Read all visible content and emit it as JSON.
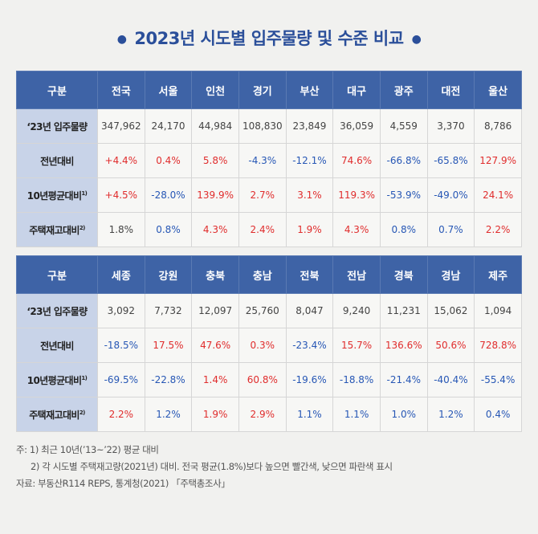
{
  "title": "2023년 시도별 입주물량 및 수준 비교",
  "table_top": {
    "headers": [
      "구분",
      "전국",
      "서울",
      "인천",
      "경기",
      "부산",
      "대구",
      "광주",
      "대전",
      "울산"
    ],
    "rows": [
      {
        "label": "‘23년 입주물량",
        "cells": [
          {
            "v": "347,962",
            "c": ""
          },
          {
            "v": "24,170",
            "c": ""
          },
          {
            "v": "44,984",
            "c": ""
          },
          {
            "v": "108,830",
            "c": ""
          },
          {
            "v": "23,849",
            "c": ""
          },
          {
            "v": "36,059",
            "c": ""
          },
          {
            "v": "4,559",
            "c": ""
          },
          {
            "v": "3,370",
            "c": ""
          },
          {
            "v": "8,786",
            "c": ""
          }
        ]
      },
      {
        "label": "전년대비",
        "cells": [
          {
            "v": "+4.4%",
            "c": "red"
          },
          {
            "v": "0.4%",
            "c": "red"
          },
          {
            "v": "5.8%",
            "c": "red"
          },
          {
            "v": "-4.3%",
            "c": "blue"
          },
          {
            "v": "-12.1%",
            "c": "blue"
          },
          {
            "v": "74.6%",
            "c": "red"
          },
          {
            "v": "-66.8%",
            "c": "blue"
          },
          {
            "v": "-65.8%",
            "c": "blue"
          },
          {
            "v": "127.9%",
            "c": "red"
          }
        ]
      },
      {
        "label": "10년평균대비",
        "sup": "1)",
        "cells": [
          {
            "v": "+4.5%",
            "c": "red"
          },
          {
            "v": "-28.0%",
            "c": "blue"
          },
          {
            "v": "139.9%",
            "c": "red"
          },
          {
            "v": "2.7%",
            "c": "red"
          },
          {
            "v": "3.1%",
            "c": "red"
          },
          {
            "v": "119.3%",
            "c": "red"
          },
          {
            "v": "-53.9%",
            "c": "blue"
          },
          {
            "v": "-49.0%",
            "c": "blue"
          },
          {
            "v": "24.1%",
            "c": "red"
          }
        ]
      },
      {
        "label": "주택재고대비",
        "sup": "2)",
        "cells": [
          {
            "v": "1.8%",
            "c": ""
          },
          {
            "v": "0.8%",
            "c": "blue"
          },
          {
            "v": "4.3%",
            "c": "red"
          },
          {
            "v": "2.4%",
            "c": "red"
          },
          {
            "v": "1.9%",
            "c": "red"
          },
          {
            "v": "4.3%",
            "c": "red"
          },
          {
            "v": "0.8%",
            "c": "blue"
          },
          {
            "v": "0.7%",
            "c": "blue"
          },
          {
            "v": "2.2%",
            "c": "red"
          }
        ]
      }
    ]
  },
  "table_bottom": {
    "headers": [
      "구분",
      "세종",
      "강원",
      "충북",
      "충남",
      "전북",
      "전남",
      "경북",
      "경남",
      "제주"
    ],
    "rows": [
      {
        "label": "‘23년 입주물량",
        "cells": [
          {
            "v": "3,092",
            "c": ""
          },
          {
            "v": "7,732",
            "c": ""
          },
          {
            "v": "12,097",
            "c": ""
          },
          {
            "v": "25,760",
            "c": ""
          },
          {
            "v": "8,047",
            "c": ""
          },
          {
            "v": "9,240",
            "c": ""
          },
          {
            "v": "11,231",
            "c": ""
          },
          {
            "v": "15,062",
            "c": ""
          },
          {
            "v": "1,094",
            "c": ""
          }
        ]
      },
      {
        "label": "전년대비",
        "cells": [
          {
            "v": "-18.5%",
            "c": "blue"
          },
          {
            "v": "17.5%",
            "c": "red"
          },
          {
            "v": "47.6%",
            "c": "red"
          },
          {
            "v": "0.3%",
            "c": "red"
          },
          {
            "v": "-23.4%",
            "c": "blue"
          },
          {
            "v": "15.7%",
            "c": "red"
          },
          {
            "v": "136.6%",
            "c": "red"
          },
          {
            "v": "50.6%",
            "c": "red"
          },
          {
            "v": "728.8%",
            "c": "red"
          }
        ]
      },
      {
        "label": "10년평균대비",
        "sup": "1)",
        "cells": [
          {
            "v": "-69.5%",
            "c": "blue"
          },
          {
            "v": "-22.8%",
            "c": "blue"
          },
          {
            "v": "1.4%",
            "c": "red"
          },
          {
            "v": "60.8%",
            "c": "red"
          },
          {
            "v": "-19.6%",
            "c": "blue"
          },
          {
            "v": "-18.8%",
            "c": "blue"
          },
          {
            "v": "-21.4%",
            "c": "blue"
          },
          {
            "v": "-40.4%",
            "c": "blue"
          },
          {
            "v": "-55.4%",
            "c": "blue"
          }
        ]
      },
      {
        "label": "주택재고대비",
        "sup": "2)",
        "cells": [
          {
            "v": "2.2%",
            "c": "red"
          },
          {
            "v": "1.2%",
            "c": "blue"
          },
          {
            "v": "1.9%",
            "c": "red"
          },
          {
            "v": "2.9%",
            "c": "red"
          },
          {
            "v": "1.1%",
            "c": "blue"
          },
          {
            "v": "1.1%",
            "c": "blue"
          },
          {
            "v": "1.0%",
            "c": "blue"
          },
          {
            "v": "1.2%",
            "c": "blue"
          },
          {
            "v": "0.4%",
            "c": "blue"
          }
        ]
      }
    ]
  },
  "notes": {
    "note1": "주: 1) 최근 10년(’13~’22) 평균 대비",
    "note2": "2) 각 시도별 주택재고량(2021년) 대비. 전국 평균(1.8%)보다 높으면 빨간색, 낮으면 파란색 표시",
    "source": "자료: 부동산R114 REPS, 통계청(2021) 「주택총조사」"
  },
  "colors": {
    "header_bg": "#3e63a6",
    "rowhead_bg": "#c8d3e8",
    "positive": "#e02d2d",
    "negative": "#2757b5",
    "title": "#2b4f9a"
  }
}
